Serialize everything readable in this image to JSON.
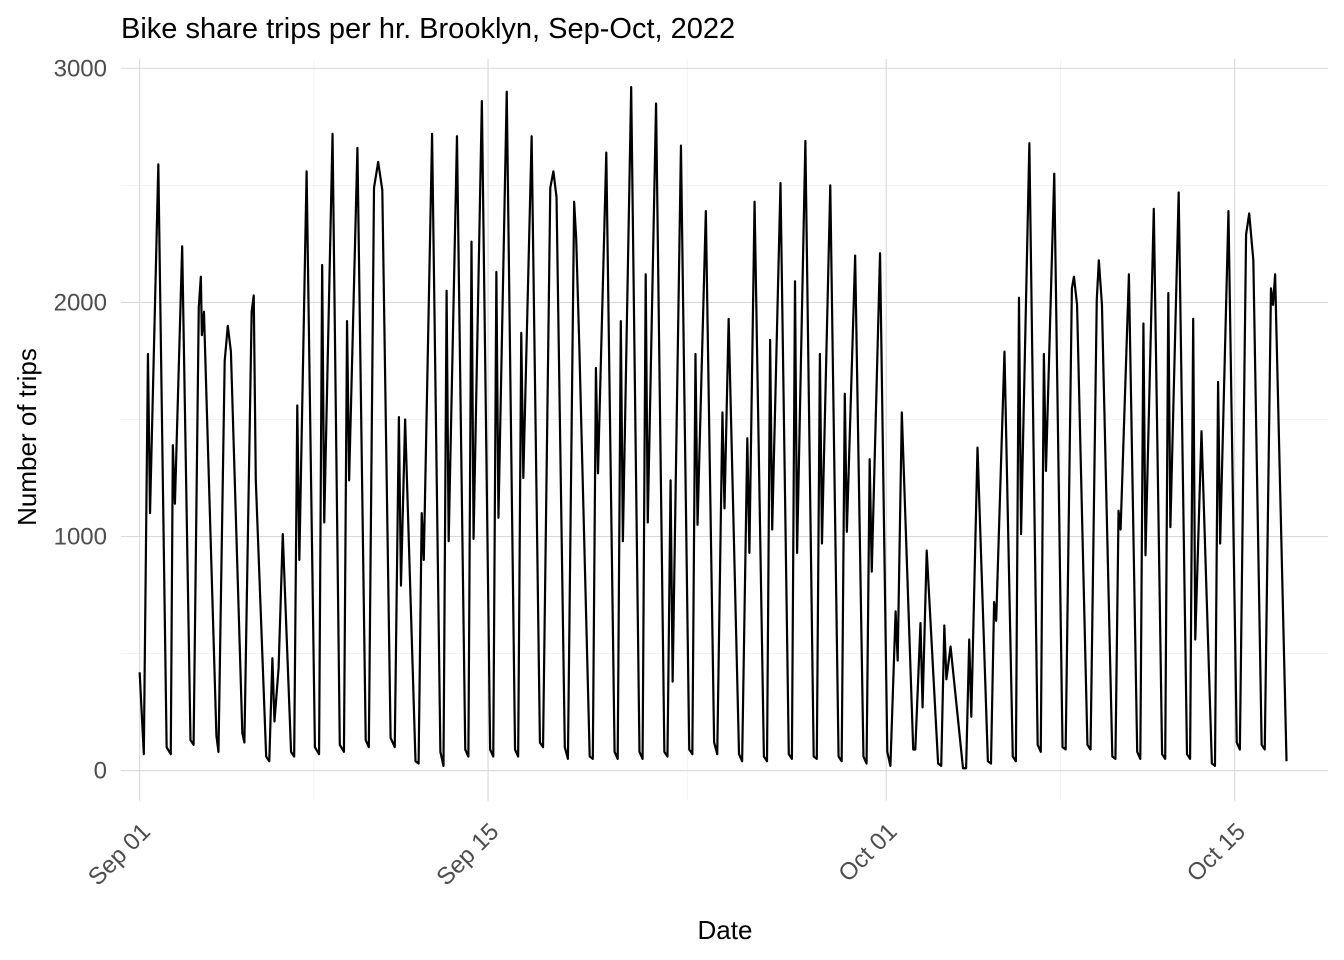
{
  "chart_data": {
    "type": "line",
    "title": "Bike share trips per hr. Brooklyn, Sep-Oct, 2022",
    "xlabel": "Date",
    "ylabel": "Number of trips",
    "x_range": [
      "2022-08-31 06:00",
      "2022-10-18 18:00"
    ],
    "ylim": [
      -130,
      3040
    ],
    "x_ticks": [
      {
        "date": "2022-09-01",
        "label": "Sep 01"
      },
      {
        "date": "2022-09-15",
        "label": "Sep 15"
      },
      {
        "date": "2022-10-01",
        "label": "Oct 01"
      },
      {
        "date": "2022-10-15",
        "label": "Oct 15"
      }
    ],
    "y_ticks": [
      0,
      1000,
      2000,
      3000
    ],
    "grid": true,
    "legend": "none",
    "series": [
      {
        "sampling": "approximate daily extrema",
        "points": [
          [
            "2022-09-01 00:00",
            420
          ],
          [
            "2022-09-01 04:00",
            70
          ],
          [
            "2022-09-01 08:00",
            1780
          ],
          [
            "2022-09-01 10:00",
            1100
          ],
          [
            "2022-09-01 18:00",
            2590
          ],
          [
            "2022-09-02 02:00",
            100
          ],
          [
            "2022-09-02 06:00",
            70
          ],
          [
            "2022-09-02 08:00",
            1390
          ],
          [
            "2022-09-02 10:00",
            1140
          ],
          [
            "2022-09-02 17:00",
            2240
          ],
          [
            "2022-09-03 01:00",
            130
          ],
          [
            "2022-09-03 04:00",
            110
          ],
          [
            "2022-09-03 09:00",
            1980
          ],
          [
            "2022-09-03 11:00",
            2110
          ],
          [
            "2022-09-03 12:00",
            1860
          ],
          [
            "2022-09-03 14:00",
            1960
          ],
          [
            "2022-09-04 02:00",
            150
          ],
          [
            "2022-09-04 04:00",
            80
          ],
          [
            "2022-09-04 10:00",
            1750
          ],
          [
            "2022-09-04 13:00",
            1900
          ],
          [
            "2022-09-04 16:00",
            1790
          ],
          [
            "2022-09-05 03:00",
            160
          ],
          [
            "2022-09-05 05:00",
            120
          ],
          [
            "2022-09-05 12:00",
            1960
          ],
          [
            "2022-09-05 14:00",
            2030
          ],
          [
            "2022-09-05 16:00",
            1240
          ],
          [
            "2022-09-06 02:00",
            60
          ],
          [
            "2022-09-06 05:00",
            40
          ],
          [
            "2022-09-06 08:00",
            480
          ],
          [
            "2022-09-06 10:00",
            210
          ],
          [
            "2022-09-06 14:00",
            440
          ],
          [
            "2022-09-06 18:00",
            1010
          ],
          [
            "2022-09-07 02:00",
            80
          ],
          [
            "2022-09-07 05:00",
            60
          ],
          [
            "2022-09-07 08:00",
            1560
          ],
          [
            "2022-09-07 10:00",
            900
          ],
          [
            "2022-09-07 17:00",
            2560
          ],
          [
            "2022-09-08 01:00",
            100
          ],
          [
            "2022-09-08 05:00",
            70
          ],
          [
            "2022-09-08 08:00",
            2160
          ],
          [
            "2022-09-08 10:00",
            1060
          ],
          [
            "2022-09-08 18:00",
            2720
          ],
          [
            "2022-09-09 01:00",
            110
          ],
          [
            "2022-09-09 05:00",
            80
          ],
          [
            "2022-09-09 08:00",
            1920
          ],
          [
            "2022-09-09 10:00",
            1240
          ],
          [
            "2022-09-09 18:00",
            2660
          ],
          [
            "2022-09-10 02:00",
            130
          ],
          [
            "2022-09-10 05:00",
            100
          ],
          [
            "2022-09-10 10:00",
            2490
          ],
          [
            "2022-09-10 14:00",
            2600
          ],
          [
            "2022-09-10 18:00",
            2480
          ],
          [
            "2022-09-11 02:00",
            140
          ],
          [
            "2022-09-11 06:00",
            100
          ],
          [
            "2022-09-11 10:00",
            1510
          ],
          [
            "2022-09-11 12:00",
            790
          ],
          [
            "2022-09-11 16:00",
            1500
          ],
          [
            "2022-09-12 02:00",
            40
          ],
          [
            "2022-09-12 05:00",
            30
          ],
          [
            "2022-09-12 08:00",
            1100
          ],
          [
            "2022-09-12 10:00",
            900
          ],
          [
            "2022-09-12 18:00",
            2720
          ],
          [
            "2022-09-13 02:00",
            80
          ],
          [
            "2022-09-13 05:00",
            20
          ],
          [
            "2022-09-13 08:00",
            2050
          ],
          [
            "2022-09-13 10:00",
            980
          ],
          [
            "2022-09-13 18:00",
            2710
          ],
          [
            "2022-09-14 02:00",
            90
          ],
          [
            "2022-09-14 05:00",
            60
          ],
          [
            "2022-09-14 08:00",
            2260
          ],
          [
            "2022-09-14 10:00",
            990
          ],
          [
            "2022-09-14 18:00",
            2860
          ],
          [
            "2022-09-15 02:00",
            90
          ],
          [
            "2022-09-15 05:00",
            60
          ],
          [
            "2022-09-15 08:00",
            2130
          ],
          [
            "2022-09-15 10:00",
            1080
          ],
          [
            "2022-09-15 18:00",
            2900
          ],
          [
            "2022-09-16 02:00",
            90
          ],
          [
            "2022-09-16 05:00",
            60
          ],
          [
            "2022-09-16 08:00",
            1870
          ],
          [
            "2022-09-16 10:00",
            1250
          ],
          [
            "2022-09-16 18:00",
            2710
          ],
          [
            "2022-09-17 02:00",
            120
          ],
          [
            "2022-09-17 05:00",
            100
          ],
          [
            "2022-09-17 12:00",
            2490
          ],
          [
            "2022-09-17 15:00",
            2560
          ],
          [
            "2022-09-17 18:00",
            2450
          ],
          [
            "2022-09-18 02:00",
            100
          ],
          [
            "2022-09-18 05:00",
            50
          ],
          [
            "2022-09-18 11:00",
            2430
          ],
          [
            "2022-09-18 13:00",
            2270
          ],
          [
            "2022-09-18 16:00",
            1810
          ],
          [
            "2022-09-19 02:00",
            60
          ],
          [
            "2022-09-19 05:00",
            50
          ],
          [
            "2022-09-19 08:00",
            1720
          ],
          [
            "2022-09-19 10:00",
            1270
          ],
          [
            "2022-09-19 18:00",
            2640
          ],
          [
            "2022-09-20 02:00",
            80
          ],
          [
            "2022-09-20 05:00",
            50
          ],
          [
            "2022-09-20 08:00",
            1920
          ],
          [
            "2022-09-20 10:00",
            980
          ],
          [
            "2022-09-20 18:00",
            2920
          ],
          [
            "2022-09-21 02:00",
            80
          ],
          [
            "2022-09-21 05:00",
            50
          ],
          [
            "2022-09-21 08:00",
            2120
          ],
          [
            "2022-09-21 10:00",
            1060
          ],
          [
            "2022-09-21 18:00",
            2850
          ],
          [
            "2022-09-22 02:00",
            80
          ],
          [
            "2022-09-22 05:00",
            60
          ],
          [
            "2022-09-22 08:00",
            1240
          ],
          [
            "2022-09-22 10:00",
            380
          ],
          [
            "2022-09-22 18:00",
            2670
          ],
          [
            "2022-09-23 02:00",
            90
          ],
          [
            "2022-09-23 05:00",
            70
          ],
          [
            "2022-09-23 08:00",
            1780
          ],
          [
            "2022-09-23 10:00",
            1050
          ],
          [
            "2022-09-23 18:00",
            2390
          ],
          [
            "2022-09-24 02:00",
            120
          ],
          [
            "2022-09-24 05:00",
            70
          ],
          [
            "2022-09-24 10:00",
            1530
          ],
          [
            "2022-09-24 12:00",
            1120
          ],
          [
            "2022-09-24 16:00",
            1930
          ],
          [
            "2022-09-25 02:00",
            70
          ],
          [
            "2022-09-25 05:00",
            40
          ],
          [
            "2022-09-25 10:00",
            1420
          ],
          [
            "2022-09-25 12:00",
            930
          ],
          [
            "2022-09-25 17:00",
            2430
          ],
          [
            "2022-09-26 02:00",
            60
          ],
          [
            "2022-09-26 05:00",
            40
          ],
          [
            "2022-09-26 08:00",
            1840
          ],
          [
            "2022-09-26 10:00",
            1030
          ],
          [
            "2022-09-26 18:00",
            2510
          ],
          [
            "2022-09-27 02:00",
            70
          ],
          [
            "2022-09-27 05:00",
            50
          ],
          [
            "2022-09-27 08:00",
            2090
          ],
          [
            "2022-09-27 10:00",
            930
          ],
          [
            "2022-09-27 18:00",
            2690
          ],
          [
            "2022-09-28 02:00",
            60
          ],
          [
            "2022-09-28 05:00",
            50
          ],
          [
            "2022-09-28 08:00",
            1780
          ],
          [
            "2022-09-28 10:00",
            970
          ],
          [
            "2022-09-28 18:00",
            2500
          ],
          [
            "2022-09-29 02:00",
            60
          ],
          [
            "2022-09-29 05:00",
            40
          ],
          [
            "2022-09-29 08:00",
            1610
          ],
          [
            "2022-09-29 10:00",
            1020
          ],
          [
            "2022-09-29 18:00",
            2200
          ],
          [
            "2022-09-30 02:00",
            60
          ],
          [
            "2022-09-30 05:00",
            30
          ],
          [
            "2022-09-30 08:00",
            1330
          ],
          [
            "2022-09-30 10:00",
            850
          ],
          [
            "2022-09-30 18:00",
            2210
          ],
          [
            "2022-10-01 01:00",
            80
          ],
          [
            "2022-10-01 04:00",
            20
          ],
          [
            "2022-10-01 09:00",
            680
          ],
          [
            "2022-10-01 11:00",
            470
          ],
          [
            "2022-10-01 15:00",
            1530
          ],
          [
            "2022-10-02 02:00",
            90
          ],
          [
            "2022-10-02 04:00",
            90
          ],
          [
            "2022-10-02 09:00",
            630
          ],
          [
            "2022-10-02 11:00",
            270
          ],
          [
            "2022-10-02 15:00",
            940
          ],
          [
            "2022-10-03 02:00",
            30
          ],
          [
            "2022-10-03 05:00",
            20
          ],
          [
            "2022-10-03 08:00",
            620
          ],
          [
            "2022-10-03 10:00",
            390
          ],
          [
            "2022-10-03 14:00",
            530
          ],
          [
            "2022-10-04 02:00",
            10
          ],
          [
            "2022-10-04 05:00",
            10
          ],
          [
            "2022-10-04 08:00",
            560
          ],
          [
            "2022-10-04 10:00",
            230
          ],
          [
            "2022-10-04 16:00",
            1380
          ],
          [
            "2022-10-05 02:00",
            40
          ],
          [
            "2022-10-05 05:00",
            30
          ],
          [
            "2022-10-05 08:00",
            720
          ],
          [
            "2022-10-05 10:00",
            640
          ],
          [
            "2022-10-05 18:00",
            1790
          ],
          [
            "2022-10-06 02:00",
            60
          ],
          [
            "2022-10-06 05:00",
            40
          ],
          [
            "2022-10-06 08:00",
            2020
          ],
          [
            "2022-10-06 10:00",
            1010
          ],
          [
            "2022-10-06 18:00",
            2680
          ],
          [
            "2022-10-07 02:00",
            110
          ],
          [
            "2022-10-07 05:00",
            80
          ],
          [
            "2022-10-07 08:00",
            1780
          ],
          [
            "2022-10-07 10:00",
            1280
          ],
          [
            "2022-10-07 18:00",
            2550
          ],
          [
            "2022-10-08 02:00",
            100
          ],
          [
            "2022-10-08 05:00",
            90
          ],
          [
            "2022-10-08 11:00",
            2060
          ],
          [
            "2022-10-08 13:00",
            2110
          ],
          [
            "2022-10-08 16:00",
            1990
          ],
          [
            "2022-10-09 02:00",
            110
          ],
          [
            "2022-10-09 05:00",
            90
          ],
          [
            "2022-10-09 11:00",
            2010
          ],
          [
            "2022-10-09 13:00",
            2180
          ],
          [
            "2022-10-09 16:00",
            1990
          ],
          [
            "2022-10-10 02:00",
            60
          ],
          [
            "2022-10-10 05:00",
            50
          ],
          [
            "2022-10-10 08:00",
            1110
          ],
          [
            "2022-10-10 10:00",
            1030
          ],
          [
            "2022-10-10 18:00",
            2120
          ],
          [
            "2022-10-11 02:00",
            80
          ],
          [
            "2022-10-11 05:00",
            50
          ],
          [
            "2022-10-11 08:00",
            1910
          ],
          [
            "2022-10-11 10:00",
            920
          ],
          [
            "2022-10-11 18:00",
            2400
          ],
          [
            "2022-10-12 02:00",
            70
          ],
          [
            "2022-10-12 05:00",
            50
          ],
          [
            "2022-10-12 08:00",
            2040
          ],
          [
            "2022-10-12 10:00",
            1040
          ],
          [
            "2022-10-12 18:00",
            2470
          ],
          [
            "2022-10-13 02:00",
            70
          ],
          [
            "2022-10-13 05:00",
            50
          ],
          [
            "2022-10-13 08:00",
            1930
          ],
          [
            "2022-10-13 10:00",
            560
          ],
          [
            "2022-10-13 16:00",
            1450
          ],
          [
            "2022-10-14 02:00",
            30
          ],
          [
            "2022-10-14 05:00",
            20
          ],
          [
            "2022-10-14 08:00",
            1660
          ],
          [
            "2022-10-14 10:00",
            970
          ],
          [
            "2022-10-14 18:00",
            2390
          ],
          [
            "2022-10-15 02:00",
            120
          ],
          [
            "2022-10-15 05:00",
            90
          ],
          [
            "2022-10-15 11:00",
            2290
          ],
          [
            "2022-10-15 14:00",
            2380
          ],
          [
            "2022-10-15 18:00",
            2180
          ],
          [
            "2022-10-16 02:00",
            110
          ],
          [
            "2022-10-16 05:00",
            90
          ],
          [
            "2022-10-16 11:00",
            2060
          ],
          [
            "2022-10-16 13:00",
            1990
          ],
          [
            "2022-10-16 15:00",
            2120
          ],
          [
            "2022-10-17 02:00",
            40
          ]
        ]
      }
    ]
  }
}
